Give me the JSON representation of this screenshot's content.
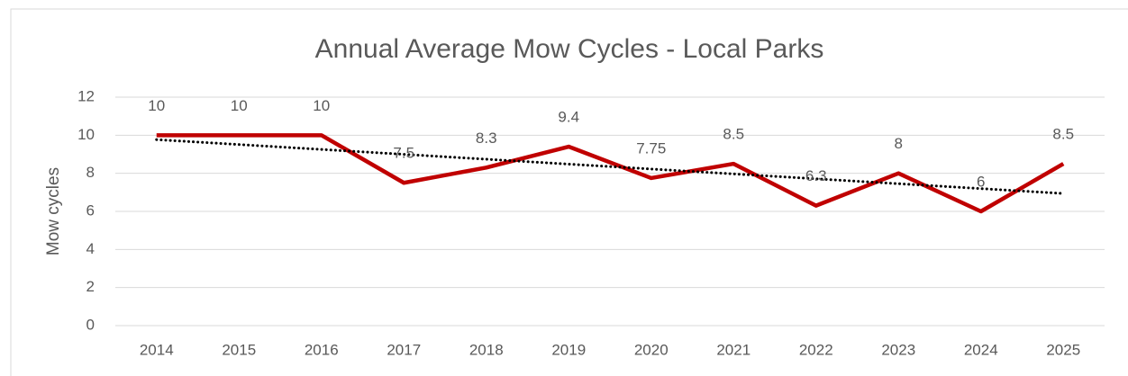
{
  "chart_data": {
    "type": "line",
    "title": "Annual Average Mow Cycles - Local Parks",
    "y_label": "Mow cycles",
    "categories": [
      "2014",
      "2015",
      "2016",
      "2017",
      "2018",
      "2019",
      "2020",
      "2021",
      "2022",
      "2023",
      "2024",
      "2025"
    ],
    "series": [
      {
        "name": "Mow cycles",
        "color": "#c00000",
        "values": [
          10,
          10,
          10,
          7.5,
          8.3,
          9.4,
          7.75,
          8.5,
          6.3,
          8,
          6,
          8.5
        ]
      }
    ],
    "ylim": [
      0,
      12
    ],
    "yticks": [
      0,
      2,
      4,
      6,
      8,
      10,
      12
    ],
    "grid": true,
    "trendline": "linear",
    "trendline_color": "#000000",
    "data_labels": true
  }
}
